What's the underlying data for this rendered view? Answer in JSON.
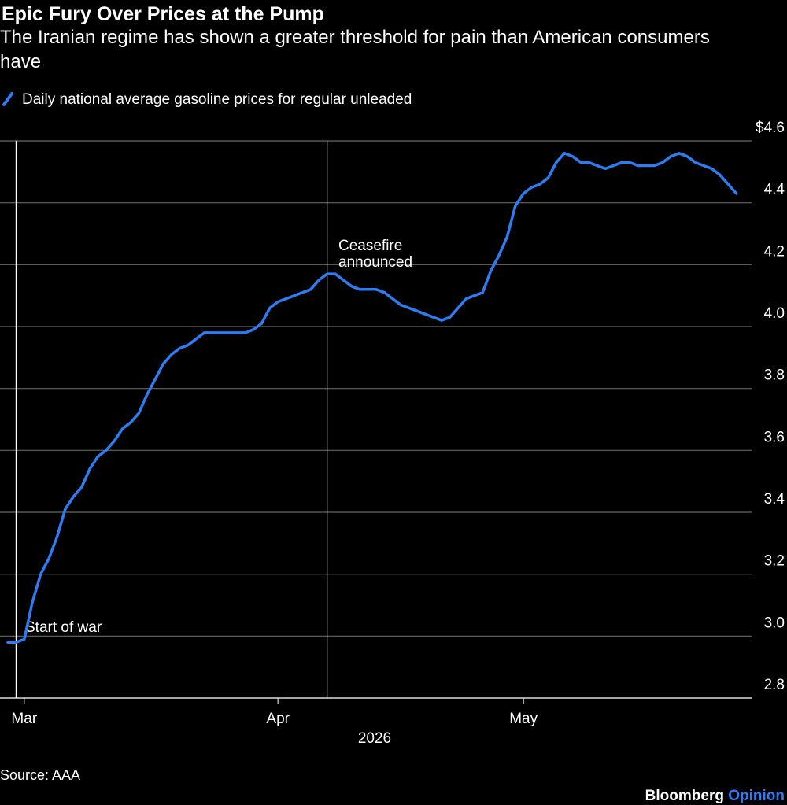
{
  "chart_data": {
    "type": "line",
    "title": "Epic Fury Over Prices at the Pump",
    "subtitle": "The Iranian regime has shown a greater threshold for pain than American consumers have",
    "x_label": "2026",
    "categories": [
      null,
      null,
      "Mar",
      null,
      null,
      null,
      null,
      null,
      null,
      null,
      null,
      null,
      null,
      null,
      null,
      null,
      null,
      null,
      null,
      null,
      null,
      null,
      null,
      null,
      null,
      null,
      null,
      null,
      null,
      null,
      null,
      null,
      null,
      "Apr",
      null,
      null,
      null,
      null,
      null,
      null,
      null,
      null,
      null,
      null,
      null,
      null,
      null,
      null,
      null,
      null,
      null,
      null,
      null,
      null,
      null,
      null,
      null,
      null,
      null,
      null,
      null,
      null,
      null,
      "May",
      null,
      null,
      null,
      null,
      null,
      null,
      null,
      null,
      null,
      null,
      null,
      null,
      null,
      null,
      null,
      null,
      null,
      null,
      null,
      null,
      null,
      null,
      null,
      null,
      null,
      null
    ],
    "series": [
      {
        "name": "Daily national average gasoline prices for regular unleaded",
        "color": "#2f7bf0",
        "values": [
          2.98,
          2.98,
          2.99,
          3.11,
          3.2,
          3.25,
          3.32,
          3.41,
          3.45,
          3.48,
          3.54,
          3.58,
          3.6,
          3.63,
          3.67,
          3.69,
          3.72,
          3.78,
          3.83,
          3.88,
          3.91,
          3.93,
          3.94,
          3.96,
          3.98,
          3.98,
          3.98,
          3.98,
          3.98,
          3.98,
          3.99,
          4.01,
          4.06,
          4.08,
          4.09,
          4.1,
          4.11,
          4.12,
          4.15,
          4.17,
          4.17,
          4.15,
          4.13,
          4.12,
          4.12,
          4.12,
          4.11,
          4.09,
          4.07,
          4.06,
          4.05,
          4.04,
          4.03,
          4.02,
          4.03,
          4.06,
          4.09,
          4.1,
          4.11,
          4.18,
          4.23,
          4.29,
          4.39,
          4.43,
          4.45,
          4.46,
          4.48,
          4.53,
          4.56,
          4.55,
          4.53,
          4.53,
          4.52,
          4.51,
          4.52,
          4.53,
          4.53,
          4.52,
          4.52,
          4.52,
          4.53,
          4.55,
          4.56,
          4.55,
          4.53,
          4.52,
          4.51,
          4.49,
          4.46,
          4.43
        ]
      }
    ],
    "ylim": [
      2.8,
      4.6
    ],
    "yticks": [
      2.8,
      {
        "value": 3.0,
        "label": "3.0"
      },
      3.2,
      3.4,
      3.6,
      3.8,
      {
        "value": 4.0,
        "label": "4.0"
      },
      4.2,
      4.4,
      {
        "value": 4.6,
        "label": "$4.6"
      }
    ],
    "grid": true,
    "annotations": [
      "Start of war",
      "Ceasefire announced"
    ],
    "source": "Source: AAA",
    "credit": [
      "Bloomberg",
      "Opinion"
    ]
  }
}
